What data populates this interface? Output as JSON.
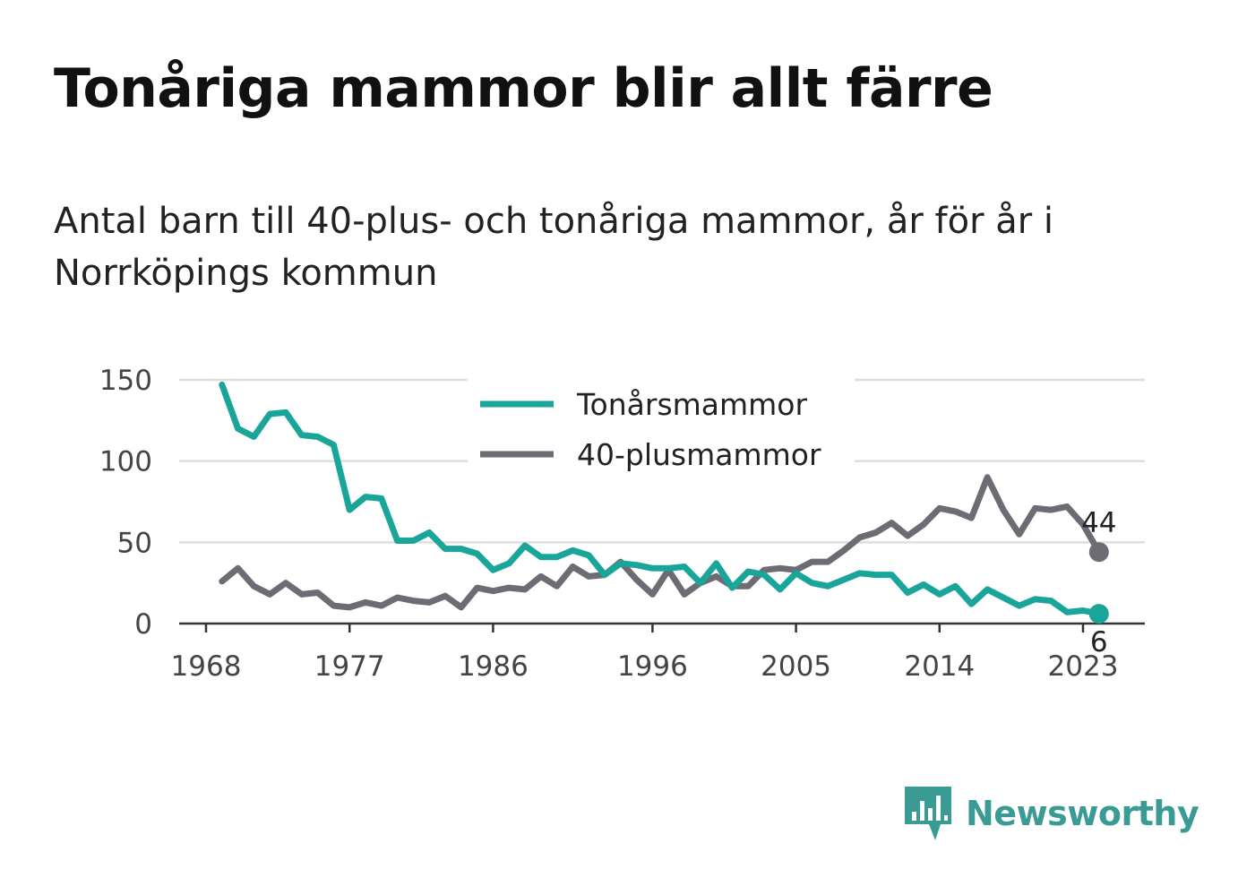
{
  "title": "Tonåriga mammor blir allt färre",
  "subtitle": "Antal barn till 40-plus- och tonåriga mammor, år för år i Norrköpings kommun",
  "brand": {
    "name": "Newsworthy",
    "icon": "bar-chart-speech-bubble-icon",
    "color": "#3a9b94"
  },
  "chart_data": {
    "type": "line",
    "title": "Tonåriga mammor blir allt färre",
    "xlabel": "",
    "ylabel": "",
    "xlim": [
      1968,
      2024
    ],
    "ylim": [
      0,
      150
    ],
    "grid": true,
    "legend_position": "top-center",
    "x_ticks": [
      "1968",
      "1977",
      "1986",
      "1996",
      "2005",
      "2014",
      "2023"
    ],
    "y_ticks": [
      "0",
      "50",
      "100",
      "150"
    ],
    "x": [
      1969,
      1970,
      1971,
      1972,
      1973,
      1974,
      1975,
      1976,
      1977,
      1978,
      1979,
      1980,
      1981,
      1982,
      1983,
      1984,
      1985,
      1986,
      1987,
      1988,
      1989,
      1990,
      1991,
      1992,
      1993,
      1994,
      1995,
      1996,
      1997,
      1998,
      1999,
      2000,
      2001,
      2002,
      2003,
      2004,
      2005,
      2006,
      2007,
      2008,
      2009,
      2010,
      2011,
      2012,
      2013,
      2014,
      2015,
      2016,
      2017,
      2018,
      2019,
      2020,
      2021,
      2022,
      2023,
      2024
    ],
    "series": [
      {
        "name": "Tonårsmammor",
        "color": "#1aa59a",
        "end_label": "6",
        "values": [
          147,
          120,
          115,
          129,
          130,
          116,
          115,
          110,
          70,
          78,
          77,
          51,
          51,
          56,
          46,
          46,
          43,
          33,
          37,
          48,
          41,
          41,
          45,
          42,
          30,
          37,
          36,
          34,
          34,
          35,
          25,
          37,
          22,
          32,
          30,
          21,
          31,
          25,
          23,
          27,
          31,
          30,
          30,
          19,
          24,
          18,
          23,
          12,
          21,
          16,
          11,
          15,
          14,
          7,
          8,
          6
        ]
      },
      {
        "name": "40-plusmammor",
        "color": "#6d6c75",
        "end_label": "44",
        "values": [
          26,
          34,
          23,
          18,
          25,
          18,
          19,
          11,
          10,
          13,
          11,
          16,
          14,
          13,
          17,
          10,
          22,
          20,
          22,
          21,
          29,
          23,
          35,
          29,
          30,
          38,
          27,
          18,
          33,
          18,
          25,
          29,
          23,
          23,
          33,
          34,
          33,
          38,
          38,
          45,
          53,
          56,
          62,
          54,
          61,
          71,
          69,
          65,
          90,
          70,
          55,
          71,
          70,
          72,
          61,
          44
        ]
      }
    ]
  }
}
